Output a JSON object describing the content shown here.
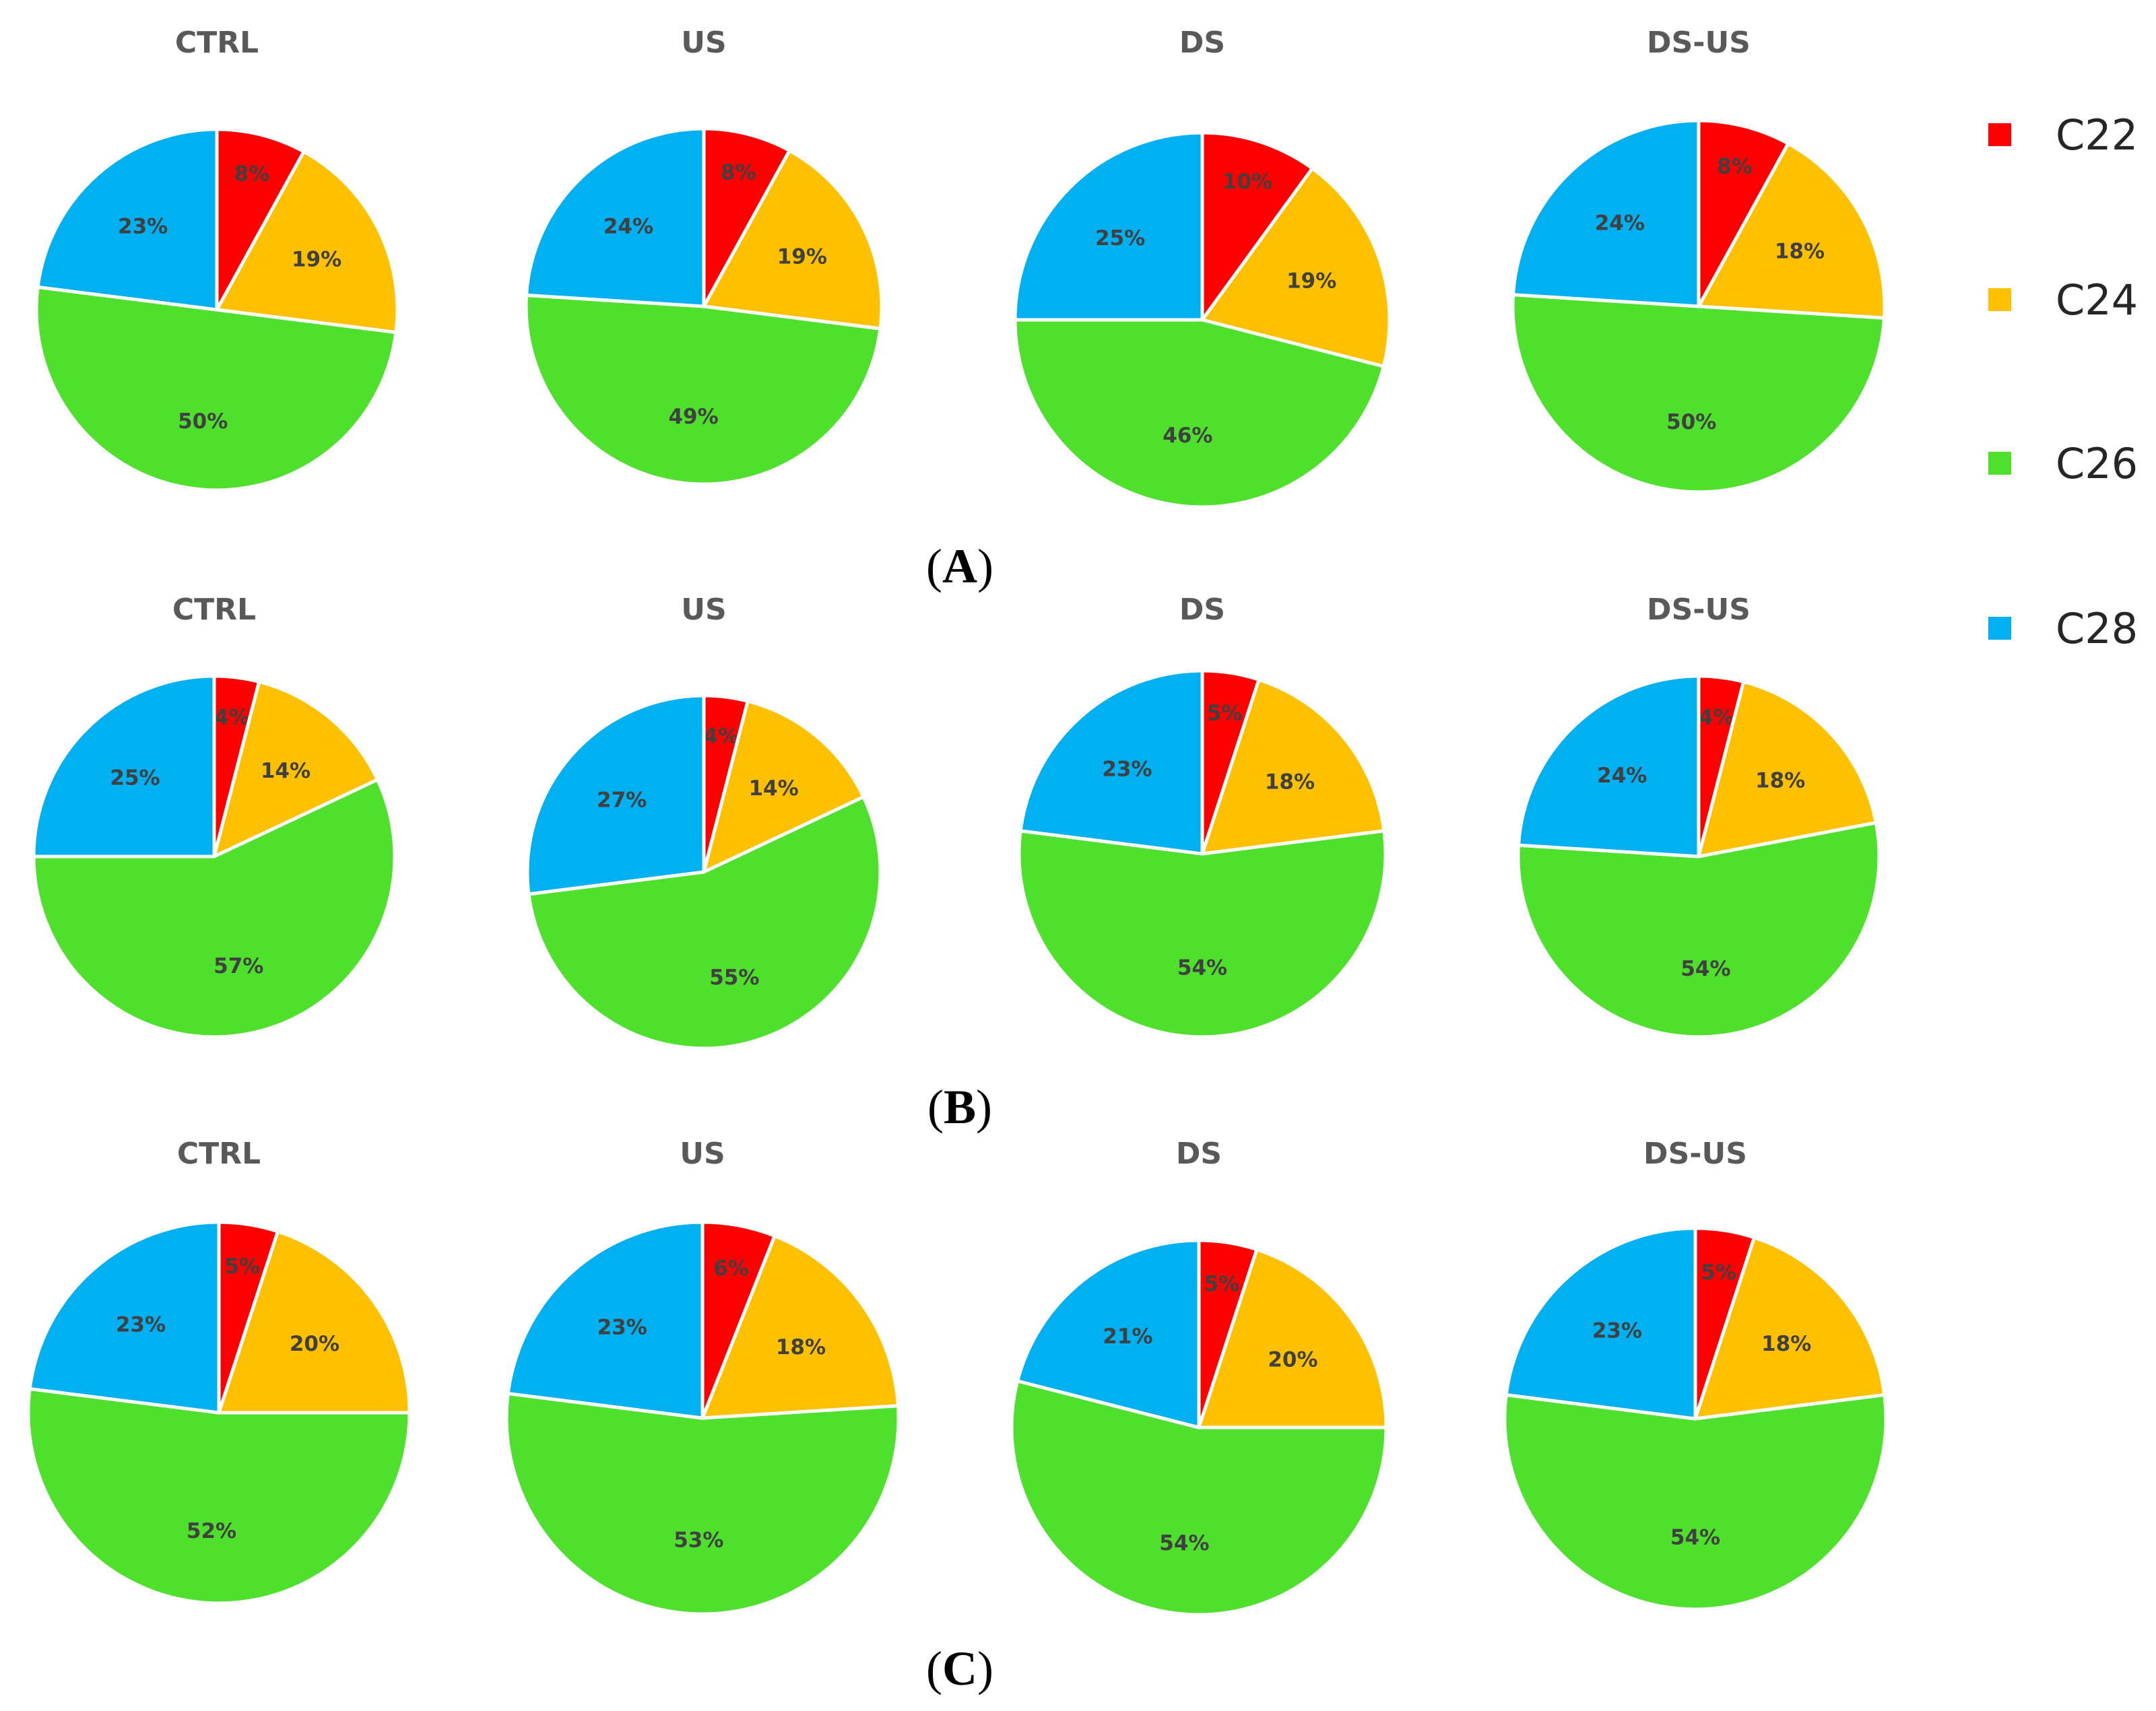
{
  "legend": {
    "items": [
      {
        "label": "C22",
        "color": "#FF0000"
      },
      {
        "label": "C24",
        "color": "#FFC000"
      },
      {
        "label": "C26",
        "color": "#4FE02E"
      },
      {
        "label": "C28",
        "color": "#00B0F0"
      }
    ]
  },
  "chart_data": [
    {
      "panel": "A",
      "charts": [
        {
          "type": "pie",
          "title": "CTRL",
          "categories": [
            "C22",
            "C24",
            "C26",
            "C28"
          ],
          "values": [
            8,
            19,
            50,
            23
          ],
          "labels": [
            "8%",
            "19%",
            "50%",
            "23%"
          ]
        },
        {
          "type": "pie",
          "title": "US",
          "categories": [
            "C22",
            "C24",
            "C26",
            "C28"
          ],
          "values": [
            8,
            19,
            49,
            24
          ],
          "labels": [
            "8%",
            "19%",
            "49%",
            "24%"
          ]
        },
        {
          "type": "pie",
          "title": "DS",
          "categories": [
            "C22",
            "C24",
            "C26",
            "C28"
          ],
          "values": [
            10,
            19,
            46,
            25
          ],
          "labels": [
            "10%",
            "19%",
            "46%",
            "25%"
          ]
        },
        {
          "type": "pie",
          "title": "DS-US",
          "categories": [
            "C22",
            "C24",
            "C26",
            "C28"
          ],
          "values": [
            8,
            18,
            50,
            24
          ],
          "labels": [
            "8%",
            "18%",
            "50%",
            "24%"
          ]
        }
      ]
    },
    {
      "panel": "B",
      "charts": [
        {
          "type": "pie",
          "title": "CTRL",
          "categories": [
            "C22",
            "C24",
            "C26",
            "C28"
          ],
          "values": [
            4,
            14,
            57,
            25
          ],
          "labels": [
            "4%",
            "14%",
            "57%",
            "25%"
          ]
        },
        {
          "type": "pie",
          "title": "US",
          "categories": [
            "C22",
            "C24",
            "C26",
            "C28"
          ],
          "values": [
            4,
            14,
            55,
            27
          ],
          "labels": [
            "4%",
            "14%",
            "55%",
            "27%"
          ]
        },
        {
          "type": "pie",
          "title": "DS",
          "categories": [
            "C22",
            "C24",
            "C26",
            "C28"
          ],
          "values": [
            5,
            18,
            54,
            23
          ],
          "labels": [
            "5%",
            "18%",
            "54%",
            "23%"
          ]
        },
        {
          "type": "pie",
          "title": "DS-US",
          "categories": [
            "C22",
            "C24",
            "C26",
            "C28"
          ],
          "values": [
            4,
            18,
            54,
            24
          ],
          "labels": [
            "4%",
            "18%",
            "54%",
            "24%"
          ]
        }
      ]
    },
    {
      "panel": "C",
      "charts": [
        {
          "type": "pie",
          "title": "CTRL",
          "categories": [
            "C22",
            "C24",
            "C26",
            "C28"
          ],
          "values": [
            5,
            20,
            52,
            23
          ],
          "labels": [
            "5%",
            "20%",
            "52%",
            "23%"
          ]
        },
        {
          "type": "pie",
          "title": "US",
          "categories": [
            "C22",
            "C24",
            "C26",
            "C28"
          ],
          "values": [
            6,
            18,
            53,
            23
          ],
          "labels": [
            "6%",
            "18%",
            "53%",
            "23%"
          ]
        },
        {
          "type": "pie",
          "title": "DS",
          "categories": [
            "C22",
            "C24",
            "C26",
            "C28"
          ],
          "values": [
            5,
            20,
            54,
            21
          ],
          "labels": [
            "5%",
            "20%",
            "54%",
            "21%"
          ]
        },
        {
          "type": "pie",
          "title": "DS-US",
          "categories": [
            "C22",
            "C24",
            "C26",
            "C28"
          ],
          "values": [
            5,
            18,
            54,
            23
          ],
          "labels": [
            "5%",
            "18%",
            "54%",
            "23%"
          ]
        }
      ]
    }
  ]
}
